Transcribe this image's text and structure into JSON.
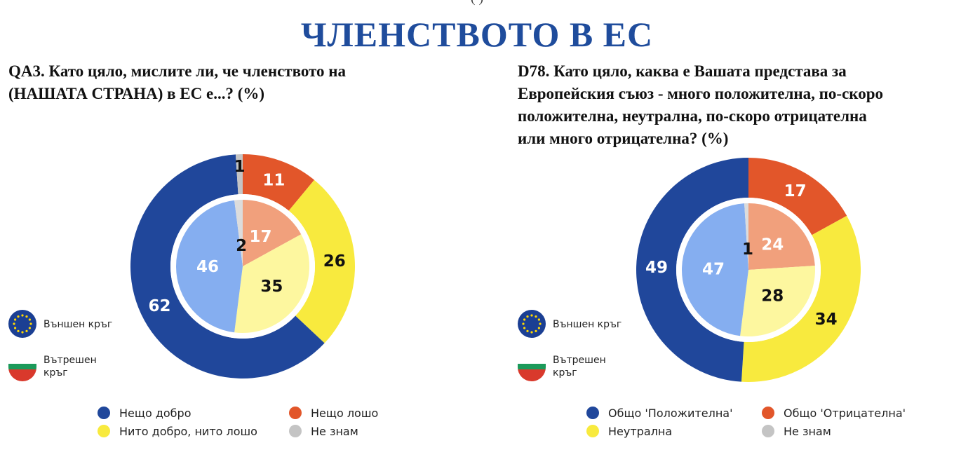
{
  "header": {
    "clipped_text": "(              )",
    "title": "ЧЛЕНСТВОТО В ЕС"
  },
  "ring_legend": {
    "outer": "Външен кръг",
    "inner_line1": "Вътрешен",
    "inner_line2": "кръг"
  },
  "colors": {
    "blue_dark": "#20479b",
    "blue_light": "#85aef0",
    "orange_dark": "#e2562a",
    "orange_light": "#f1a07c",
    "yellow_dark": "#f8ea3e",
    "yellow_light": "#fdf79f",
    "grey_dark": "#c4c4c4",
    "grey_light": "#dcdcdc",
    "eu_blue": "#1b3f93",
    "eu_star": "#ffd800",
    "bg_white": "#ffffff",
    "bg_green": "#1b9a5a",
    "bg_red": "#d9392c"
  },
  "chart_data": [
    {
      "type": "pie",
      "variant": "nested-donut",
      "question": [
        "QA3. Като цяло, мислите ли, че членството на",
        "(НАШАТА СТРАНА) в ЕС е...? (%)"
      ],
      "categories": [
        "Нещо лошо",
        "Нито добро, нито лошо",
        "Нещо добро",
        "Не знам"
      ],
      "series": [
        {
          "name": "Външен кръг",
          "values": [
            11,
            26,
            62,
            1
          ]
        },
        {
          "name": "Вътрешен кръг",
          "values": [
            17,
            35,
            46,
            2
          ]
        }
      ],
      "legend": [
        "Нещо добро",
        "Нещо лошо",
        "Нито добро, нито лошо",
        "Не знам"
      ]
    },
    {
      "type": "pie",
      "variant": "nested-donut",
      "question": [
        "D78. Като цяло, каква е Вашата представа за",
        "Европейския съюз - много положителна, по-скоро",
        "положителна, неутрална, по-скоро отрицателна",
        "или много отрицателна? (%)"
      ],
      "categories": [
        "Общо 'Отрицателна'",
        "Неутрална",
        "Общо 'Положителна'",
        "Не знам"
      ],
      "series": [
        {
          "name": "Външен кръг",
          "values": [
            17,
            34,
            49,
            0
          ]
        },
        {
          "name": "Вътрешен кръг",
          "values": [
            24,
            28,
            47,
            1
          ]
        }
      ],
      "legend": [
        "Общо 'Положителна'",
        "Общо 'Отрицателна'",
        "Неутрална",
        "Не знам"
      ]
    }
  ]
}
